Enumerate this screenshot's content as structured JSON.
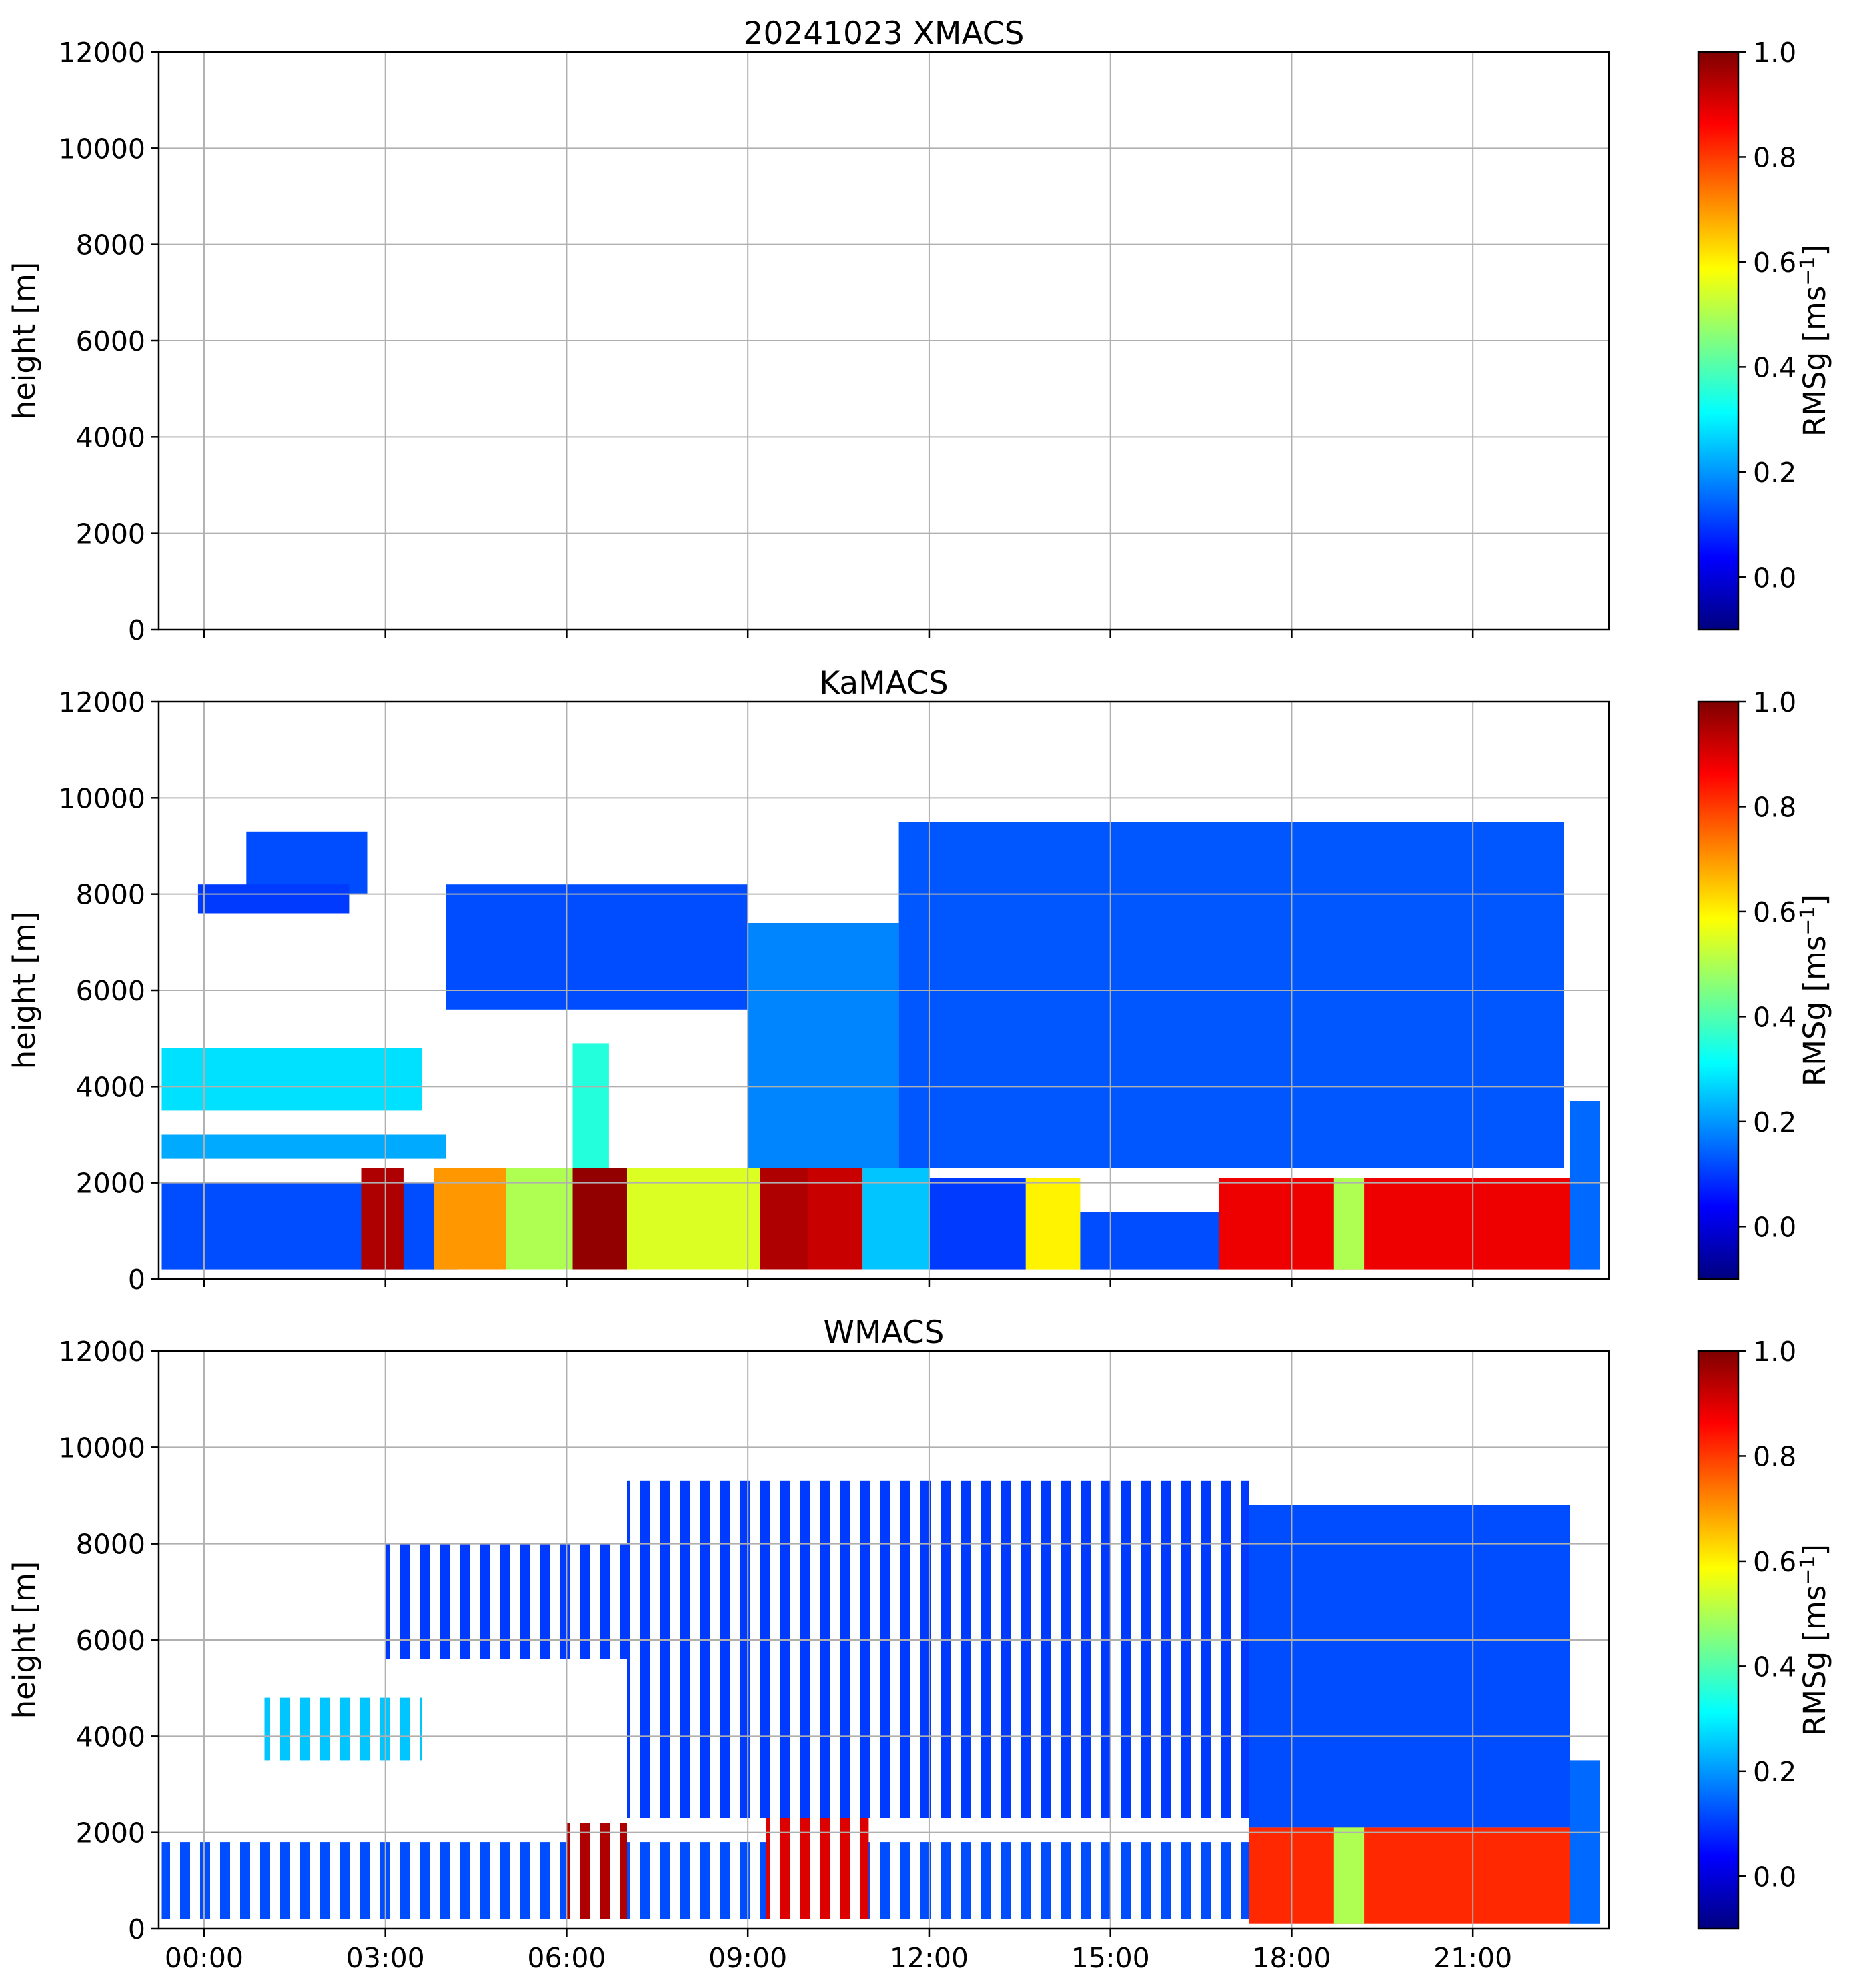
{
  "colormap": {
    "name": "jet",
    "stops": [
      "#00007f",
      "#0000ff",
      "#0080ff",
      "#00ffff",
      "#80ff80",
      "#ffff00",
      "#ff8000",
      "#ff0000",
      "#7f0000"
    ]
  },
  "chart_data": [
    {
      "type": "heatmap",
      "title": "20241023 XMACS",
      "ylabel": "height [m]",
      "ylim": [
        0,
        12000
      ],
      "yticks": [
        "0",
        "2000",
        "4000",
        "6000",
        "8000",
        "10000",
        "12000"
      ],
      "xlim_hours": [
        -0.75,
        23.25
      ],
      "xticks": [
        "00:00",
        "03:00",
        "06:00",
        "09:00",
        "12:00",
        "15:00",
        "18:00",
        "21:00"
      ],
      "show_xtick_labels": false,
      "grid": true,
      "colorbar": {
        "label": "RMSg [ms$^{-1}$]",
        "label_main": "RMSg [ms",
        "label_sup": "−1",
        "label_close": "]",
        "range": [
          -0.1,
          1.0
        ],
        "ticks": [
          "0.0",
          "0.2",
          "0.4",
          "0.6",
          "0.8",
          "1.0"
        ]
      },
      "regions": []
    },
    {
      "type": "heatmap",
      "title": "KaMACS",
      "ylabel": "height [m]",
      "ylim": [
        0,
        12000
      ],
      "yticks": [
        "0",
        "2000",
        "4000",
        "6000",
        "8000",
        "10000",
        "12000"
      ],
      "xlim_hours": [
        -0.75,
        23.25
      ],
      "xticks": [
        "00:00",
        "03:00",
        "06:00",
        "09:00",
        "12:00",
        "15:00",
        "18:00",
        "21:00"
      ],
      "show_xtick_labels": false,
      "grid": true,
      "colorbar": {
        "label": "RMSg [ms$^{-1}$]",
        "label_main": "RMSg [ms",
        "label_sup": "−1",
        "label_close": "]",
        "range": [
          -0.1,
          1.0
        ],
        "ticks": [
          "0.0",
          "0.2",
          "0.4",
          "0.6",
          "0.8",
          "1.0"
        ]
      },
      "regions": [
        {
          "t": [
            -0.7,
            4.2
          ],
          "h": [
            200,
            2000
          ],
          "v": 0.12
        },
        {
          "t": [
            -0.7,
            4.0
          ],
          "h": [
            2500,
            3000
          ],
          "v": 0.22
        },
        {
          "t": [
            -0.7,
            3.6
          ],
          "h": [
            3500,
            4800
          ],
          "v": 0.28
        },
        {
          "t": [
            0.7,
            2.7
          ],
          "h": [
            8000,
            9300
          ],
          "v": 0.12
        },
        {
          "t": [
            -0.1,
            2.4
          ],
          "h": [
            7600,
            8200
          ],
          "v": 0.1
        },
        {
          "t": [
            2.6,
            3.3
          ],
          "h": [
            200,
            2300
          ],
          "v": 0.95
        },
        {
          "t": [
            3.8,
            5.0
          ],
          "h": [
            200,
            2300
          ],
          "v": 0.7
        },
        {
          "t": [
            5.0,
            6.1
          ],
          "h": [
            200,
            2300
          ],
          "v": 0.5
        },
        {
          "t": [
            6.1,
            7.0
          ],
          "h": [
            200,
            2300
          ],
          "v": 0.98
        },
        {
          "t": [
            7.0,
            9.2
          ],
          "h": [
            200,
            2300
          ],
          "v": 0.55
        },
        {
          "t": [
            6.1,
            6.7
          ],
          "h": [
            2300,
            4900
          ],
          "v": 0.35
        },
        {
          "t": [
            9.2,
            10.0
          ],
          "h": [
            200,
            2300
          ],
          "v": 0.95
        },
        {
          "t": [
            10.0,
            10.9
          ],
          "h": [
            200,
            2300
          ],
          "v": 0.92
        },
        {
          "t": [
            10.9,
            12.0
          ],
          "h": [
            200,
            2300
          ],
          "v": 0.25
        },
        {
          "t": [
            12.0,
            13.6
          ],
          "h": [
            200,
            2100
          ],
          "v": 0.1
        },
        {
          "t": [
            13.6,
            14.5
          ],
          "h": [
            200,
            2100
          ],
          "v": 0.6
        },
        {
          "t": [
            14.5,
            16.8
          ],
          "h": [
            200,
            1400
          ],
          "v": 0.12
        },
        {
          "t": [
            4.0,
            9.0
          ],
          "h": [
            5600,
            8200
          ],
          "v": 0.12
        },
        {
          "t": [
            9.0,
            11.5
          ],
          "h": [
            2300,
            7400
          ],
          "v": 0.18
        },
        {
          "t": [
            11.5,
            22.5
          ],
          "h": [
            2300,
            9500
          ],
          "v": 0.13
        },
        {
          "t": [
            16.8,
            22.6
          ],
          "h": [
            200,
            2100
          ],
          "v": 0.88
        },
        {
          "t": [
            18.7,
            19.2
          ],
          "h": [
            200,
            2100
          ],
          "v": 0.5
        },
        {
          "t": [
            22.6,
            23.1
          ],
          "h": [
            200,
            3700
          ],
          "v": 0.15
        }
      ]
    },
    {
      "type": "heatmap",
      "title": "WMACS",
      "ylabel": "height [m]",
      "ylim": [
        0,
        12000
      ],
      "yticks": [
        "0",
        "2000",
        "4000",
        "6000",
        "8000",
        "10000",
        "12000"
      ],
      "xlim_hours": [
        -0.75,
        23.25
      ],
      "xticks": [
        "00:00",
        "03:00",
        "06:00",
        "09:00",
        "12:00",
        "15:00",
        "18:00",
        "21:00"
      ],
      "show_xtick_labels": true,
      "grid": true,
      "colorbar": {
        "label": "RMSg [ms$^{-1}$]",
        "label_main": "RMSg [ms",
        "label_sup": "−1",
        "label_close": "]",
        "range": [
          -0.1,
          1.0
        ],
        "ticks": [
          "0.0",
          "0.2",
          "0.4",
          "0.6",
          "0.8",
          "1.0"
        ]
      },
      "regions": [
        {
          "t": [
            -0.7,
            17.3
          ],
          "h": [
            200,
            1800
          ],
          "v": 0.12,
          "striped": true
        },
        {
          "t": [
            1.0,
            3.6
          ],
          "h": [
            3500,
            4800
          ],
          "v": 0.25,
          "striped": true
        },
        {
          "t": [
            3.0,
            7.0
          ],
          "h": [
            5600,
            8000
          ],
          "v": 0.1,
          "striped": true
        },
        {
          "t": [
            6.0,
            7.0
          ],
          "h": [
            200,
            2200
          ],
          "v": 0.95,
          "striped": true
        },
        {
          "t": [
            9.3,
            11.0
          ],
          "h": [
            200,
            2300
          ],
          "v": 0.9,
          "striped": true
        },
        {
          "t": [
            7.0,
            17.3
          ],
          "h": [
            2300,
            9300
          ],
          "v": 0.1,
          "striped": true
        },
        {
          "t": [
            17.3,
            22.6
          ],
          "h": [
            2100,
            8800
          ],
          "v": 0.12
        },
        {
          "t": [
            17.3,
            22.6
          ],
          "h": [
            100,
            2100
          ],
          "v": 0.82
        },
        {
          "t": [
            18.7,
            19.2
          ],
          "h": [
            100,
            2100
          ],
          "v": 0.5
        },
        {
          "t": [
            22.6,
            23.1
          ],
          "h": [
            100,
            3500
          ],
          "v": 0.15
        }
      ]
    }
  ]
}
